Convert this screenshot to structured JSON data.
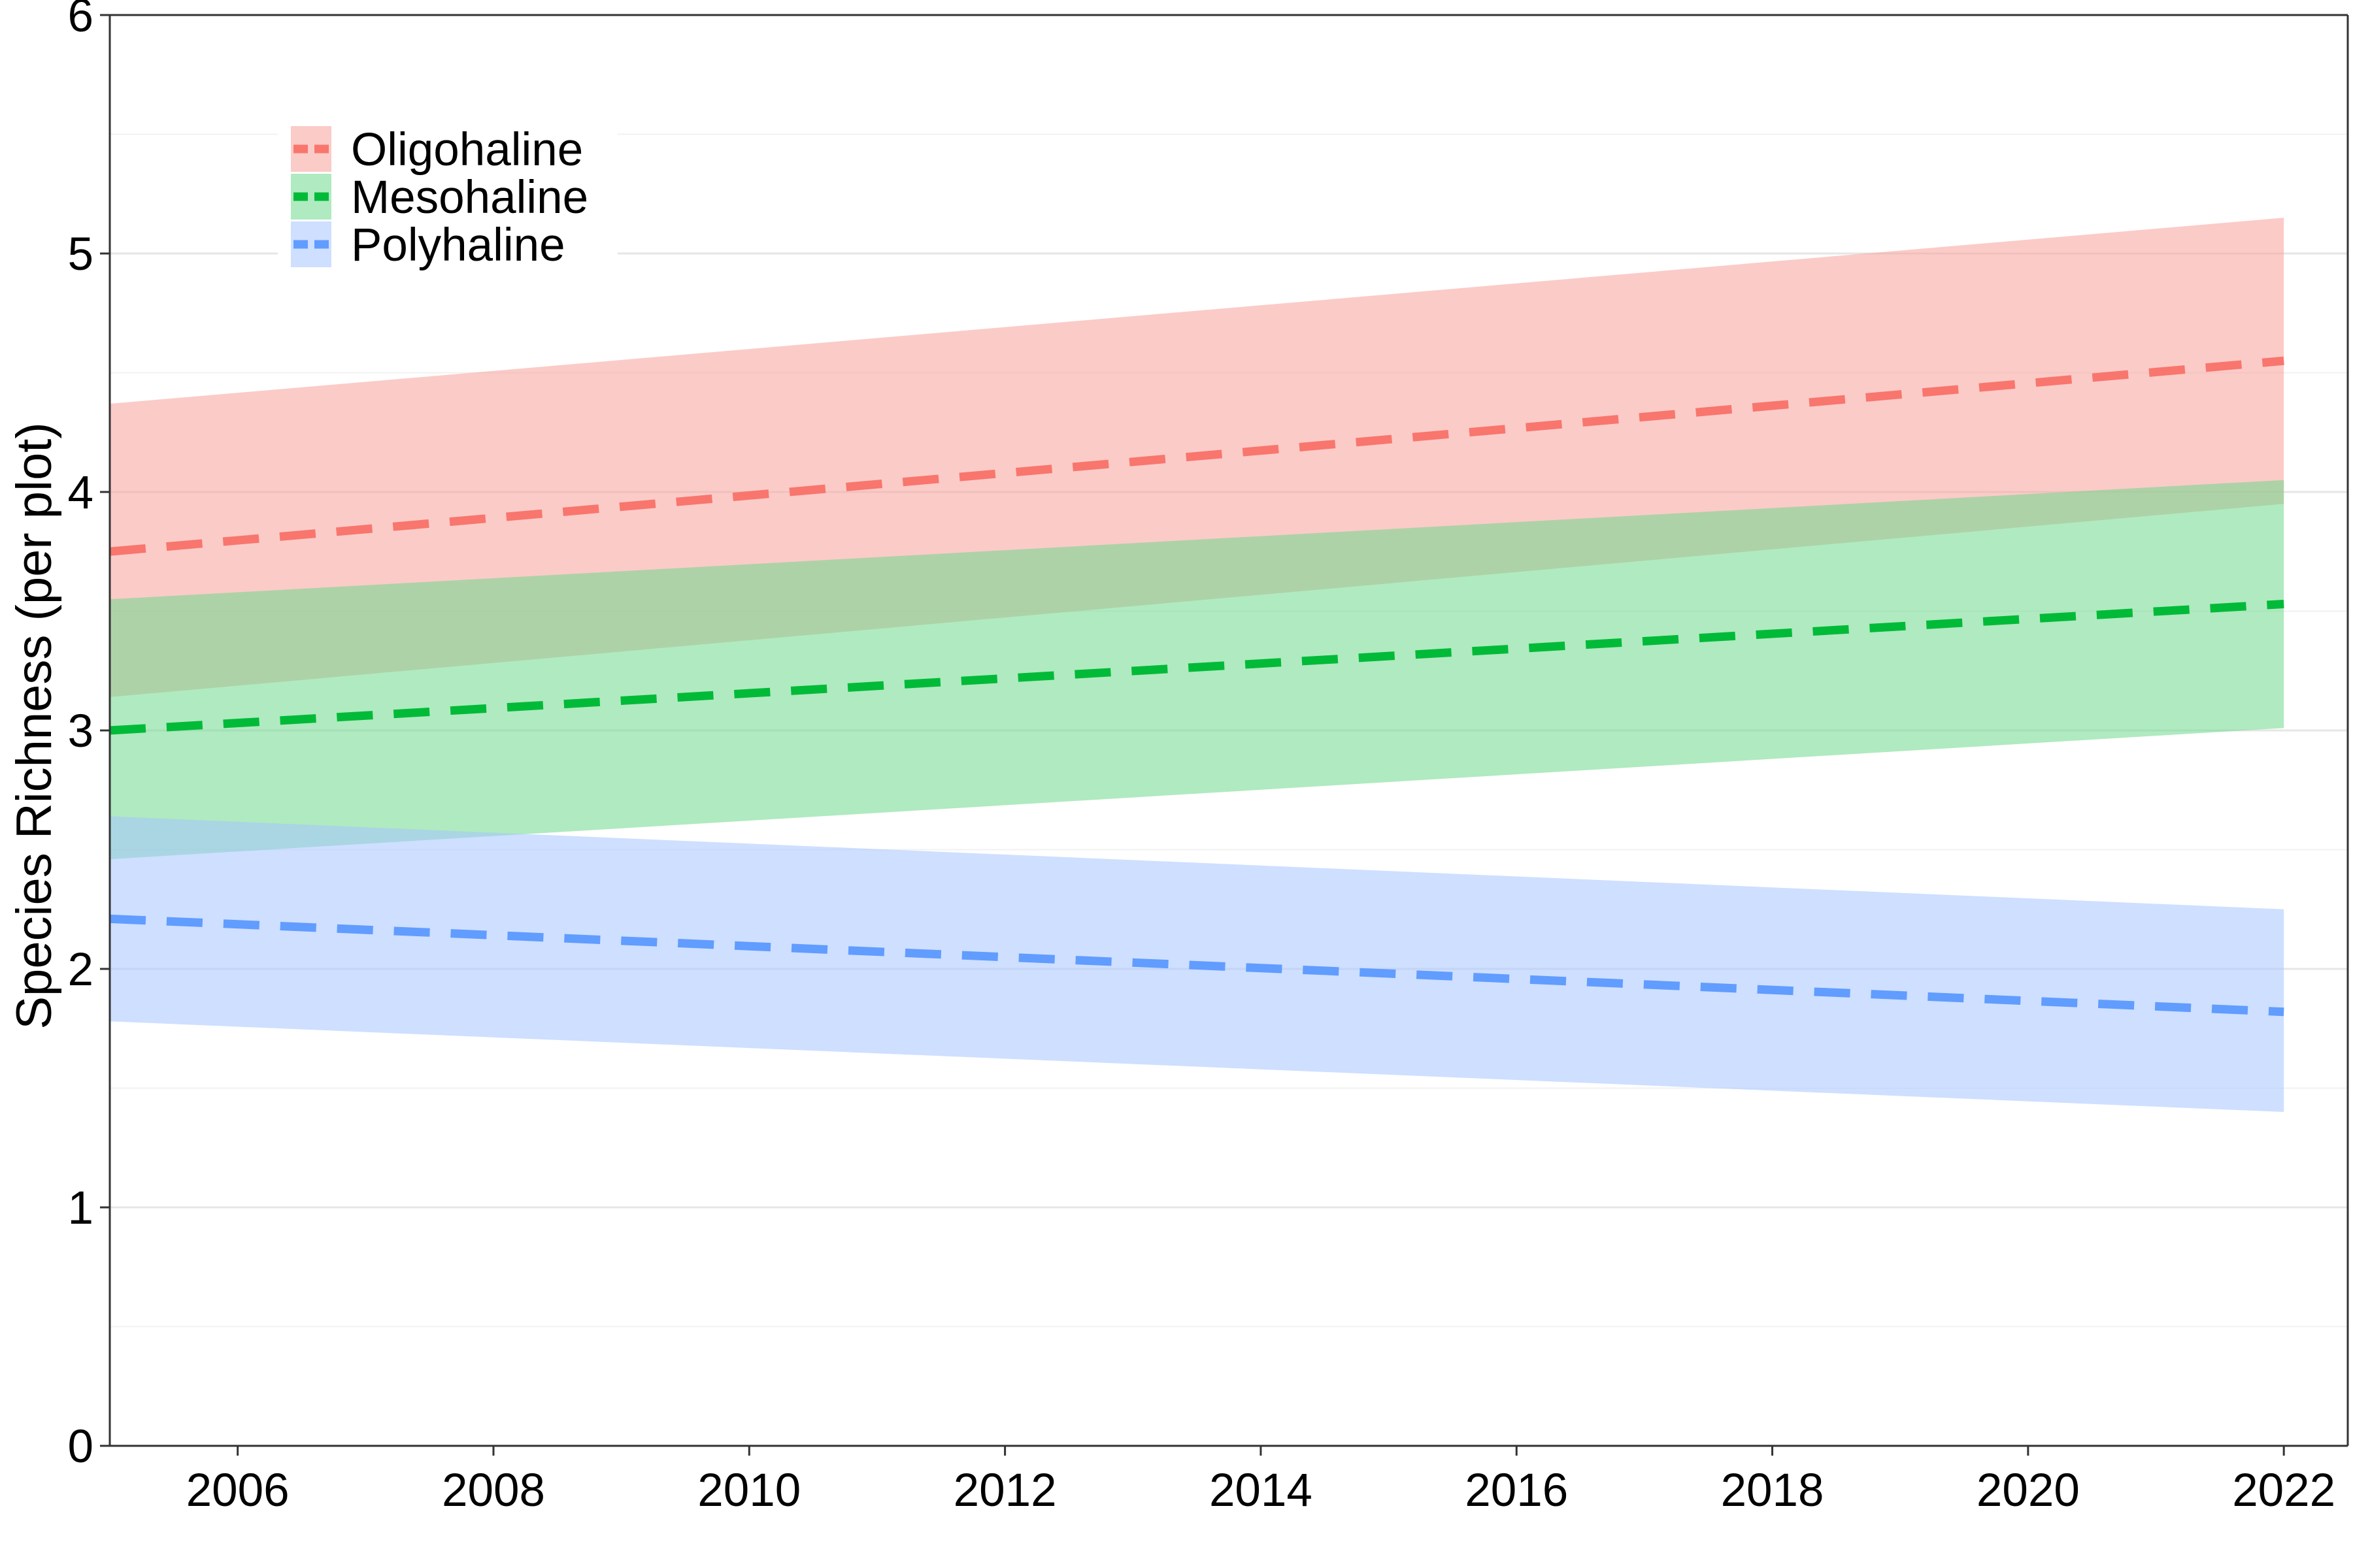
{
  "chart_data": {
    "type": "line",
    "title": "",
    "xlabel": "",
    "ylabel": "Species Richness (per plot)",
    "xlim": [
      2005,
      2022.5
    ],
    "ylim": [
      0,
      6
    ],
    "x_ticks": [
      2006,
      2008,
      2010,
      2012,
      2014,
      2016,
      2018,
      2020,
      2022
    ],
    "y_ticks": [
      0,
      1,
      2,
      3,
      4,
      5,
      6
    ],
    "grid": true,
    "legend_position": "top-left",
    "x": [
      2005,
      2022
    ],
    "series": [
      {
        "name": "Oligohaline",
        "color": "#F8766D",
        "band_color": "#F8A09B",
        "line_style": "dashed",
        "fit": [
          3.75,
          4.55
        ],
        "lower": [
          3.14,
          3.95
        ],
        "upper": [
          4.37,
          5.15
        ]
      },
      {
        "name": "Mesohaline",
        "color": "#00BA38",
        "band_color": "#6FD98D",
        "line_style": "dashed",
        "fit": [
          3.0,
          3.53
        ],
        "lower": [
          2.46,
          3.01
        ],
        "upper": [
          3.55,
          4.05
        ]
      },
      {
        "name": "Polyhaline",
        "color": "#619CFF",
        "band_color": "#A5C5FF",
        "line_style": "dashed",
        "fit": [
          2.21,
          1.82
        ],
        "lower": [
          1.78,
          1.4
        ],
        "upper": [
          2.64,
          2.25
        ]
      }
    ]
  }
}
